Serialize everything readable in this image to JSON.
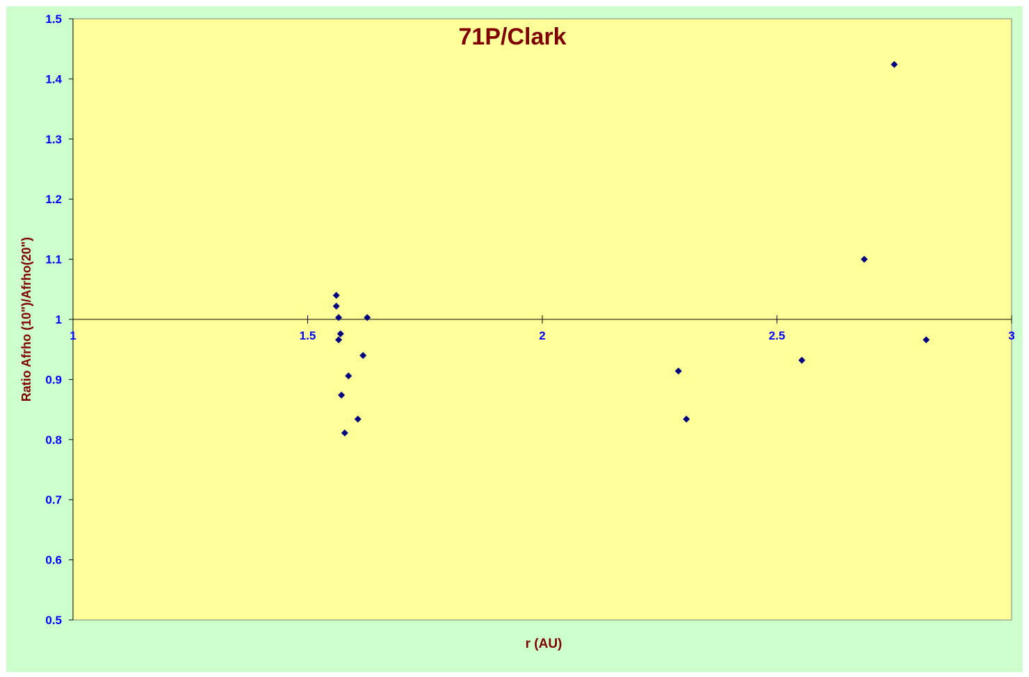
{
  "chart_data": {
    "type": "scatter",
    "title": "71P/Clark",
    "x_label": "r (AU)",
    "y_label": "Ratio Afrho (10\")/Afrho(20\")",
    "series": [
      {
        "color": "#000080",
        "x": [
          1.561,
          1.561,
          1.566,
          1.57,
          1.566,
          1.627,
          1.618,
          1.587,
          1.572,
          1.607,
          1.579,
          2.29,
          2.307,
          2.553,
          2.686,
          2.75,
          2.818
        ],
        "values": [
          1.04,
          1.022,
          1.003,
          0.976,
          0.966,
          1.003,
          0.94,
          0.906,
          0.874,
          0.834,
          0.811,
          0.914,
          0.834,
          0.932,
          1.1,
          1.424,
          0.966
        ]
      }
    ],
    "xlim": [
      1,
      3
    ],
    "xticks": [
      1,
      1.5,
      2,
      2.5,
      3
    ],
    "ylim": [
      0.5,
      1.5
    ],
    "yticks": [
      0.5,
      0.6,
      0.7,
      0.8,
      0.9,
      1,
      1.1,
      1.2,
      1.3,
      1.4,
      1.5
    ],
    "x_axis_crosses": 1,
    "plot_background": "#ffff99",
    "background": "#ccffcc",
    "tick_label_color": "#0000ff",
    "title_color": "#800000"
  }
}
